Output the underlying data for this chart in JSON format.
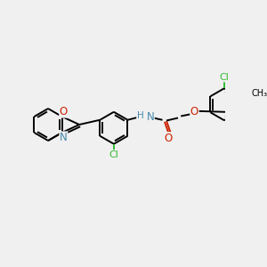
{
  "bg_color": "#f0f0f0",
  "bond_color": "#000000",
  "atom_colors": {
    "N": "#4488aa",
    "O": "#cc2200",
    "Cl": "#33bb33",
    "C": "#000000"
  },
  "lw": 1.4,
  "fs": 8.0
}
